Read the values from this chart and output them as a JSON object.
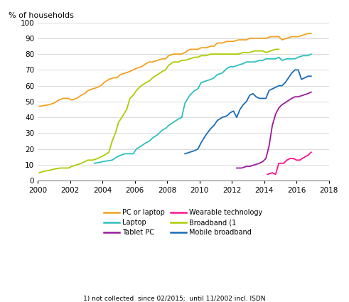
{
  "title": "",
  "ylabel": "% of households",
  "xlim": [
    2000,
    2018
  ],
  "ylim": [
    0,
    100
  ],
  "xticks": [
    2000,
    2002,
    2004,
    2006,
    2008,
    2010,
    2012,
    2014,
    2016,
    2018
  ],
  "yticks": [
    0,
    10,
    20,
    30,
    40,
    50,
    60,
    70,
    80,
    90,
    100
  ],
  "footnote": "1) not collected  since 02/2015;  until 11/2002 incl. ISDN",
  "series": {
    "PC or laptop": {
      "color": "#F4A020",
      "data": [
        [
          2000.1,
          47
        ],
        [
          2000.4,
          47.5
        ],
        [
          2000.7,
          48
        ],
        [
          2001.0,
          49
        ],
        [
          2001.3,
          51
        ],
        [
          2001.6,
          52
        ],
        [
          2001.9,
          52
        ],
        [
          2002.1,
          51
        ],
        [
          2002.4,
          52
        ],
        [
          2002.7,
          54
        ],
        [
          2002.9,
          55
        ],
        [
          2003.1,
          57
        ],
        [
          2003.4,
          58
        ],
        [
          2003.7,
          59
        ],
        [
          2003.9,
          60
        ],
        [
          2004.1,
          62
        ],
        [
          2004.4,
          64
        ],
        [
          2004.7,
          65
        ],
        [
          2004.9,
          65
        ],
        [
          2005.1,
          67
        ],
        [
          2005.4,
          68
        ],
        [
          2005.7,
          69
        ],
        [
          2005.9,
          70
        ],
        [
          2006.1,
          71
        ],
        [
          2006.4,
          72
        ],
        [
          2006.7,
          74
        ],
        [
          2006.9,
          75
        ],
        [
          2007.1,
          75
        ],
        [
          2007.4,
          76
        ],
        [
          2007.7,
          77
        ],
        [
          2007.9,
          77
        ],
        [
          2008.1,
          79
        ],
        [
          2008.4,
          80
        ],
        [
          2008.7,
          80
        ],
        [
          2008.9,
          80
        ],
        [
          2009.1,
          81
        ],
        [
          2009.4,
          83
        ],
        [
          2009.7,
          83
        ],
        [
          2009.9,
          83
        ],
        [
          2010.1,
          84
        ],
        [
          2010.4,
          84
        ],
        [
          2010.7,
          85
        ],
        [
          2010.9,
          85
        ],
        [
          2011.1,
          87
        ],
        [
          2011.4,
          87
        ],
        [
          2011.7,
          88
        ],
        [
          2011.9,
          88
        ],
        [
          2012.1,
          88
        ],
        [
          2012.4,
          89
        ],
        [
          2012.7,
          89
        ],
        [
          2012.9,
          89
        ],
        [
          2013.1,
          90
        ],
        [
          2013.4,
          90
        ],
        [
          2013.7,
          90
        ],
        [
          2013.9,
          90
        ],
        [
          2014.1,
          90
        ],
        [
          2014.4,
          91
        ],
        [
          2014.7,
          91
        ],
        [
          2014.9,
          91
        ],
        [
          2015.1,
          89
        ],
        [
          2015.4,
          90
        ],
        [
          2015.7,
          91
        ],
        [
          2015.9,
          91
        ],
        [
          2016.1,
          91
        ],
        [
          2016.4,
          92
        ],
        [
          2016.7,
          93
        ],
        [
          2016.9,
          93
        ]
      ]
    },
    "Laptop": {
      "color": "#2BBFBF",
      "data": [
        [
          2003.5,
          11
        ],
        [
          2003.8,
          11.5
        ],
        [
          2004.0,
          12
        ],
        [
          2004.3,
          12.5
        ],
        [
          2004.6,
          13
        ],
        [
          2004.9,
          15
        ],
        [
          2005.1,
          16
        ],
        [
          2005.4,
          17
        ],
        [
          2005.7,
          17
        ],
        [
          2005.9,
          17
        ],
        [
          2006.1,
          20
        ],
        [
          2006.4,
          22
        ],
        [
          2006.7,
          24
        ],
        [
          2006.9,
          25
        ],
        [
          2007.1,
          27
        ],
        [
          2007.4,
          29
        ],
        [
          2007.7,
          32
        ],
        [
          2007.9,
          33
        ],
        [
          2008.1,
          35
        ],
        [
          2008.4,
          37
        ],
        [
          2008.7,
          39
        ],
        [
          2008.9,
          40
        ],
        [
          2009.1,
          49
        ],
        [
          2009.4,
          54
        ],
        [
          2009.7,
          57
        ],
        [
          2009.9,
          58
        ],
        [
          2010.1,
          62
        ],
        [
          2010.4,
          63
        ],
        [
          2010.7,
          64
        ],
        [
          2010.9,
          65
        ],
        [
          2011.1,
          67
        ],
        [
          2011.4,
          68
        ],
        [
          2011.7,
          71
        ],
        [
          2011.9,
          72
        ],
        [
          2012.1,
          72
        ],
        [
          2012.4,
          73
        ],
        [
          2012.7,
          74
        ],
        [
          2012.9,
          75
        ],
        [
          2013.1,
          75
        ],
        [
          2013.4,
          75
        ],
        [
          2013.7,
          76
        ],
        [
          2013.9,
          76
        ],
        [
          2014.1,
          77
        ],
        [
          2014.4,
          77
        ],
        [
          2014.7,
          77
        ],
        [
          2014.9,
          78
        ],
        [
          2015.1,
          76
        ],
        [
          2015.4,
          77
        ],
        [
          2015.7,
          77
        ],
        [
          2015.9,
          77
        ],
        [
          2016.1,
          78
        ],
        [
          2016.4,
          79
        ],
        [
          2016.7,
          79
        ],
        [
          2016.9,
          80
        ]
      ]
    },
    "Tablet PC": {
      "color": "#9B1A9B",
      "data": [
        [
          2012.3,
          8
        ],
        [
          2012.6,
          8
        ],
        [
          2012.9,
          9
        ],
        [
          2013.1,
          9
        ],
        [
          2013.4,
          10
        ],
        [
          2013.7,
          11
        ],
        [
          2013.9,
          12
        ],
        [
          2014.1,
          14
        ],
        [
          2014.3,
          22
        ],
        [
          2014.5,
          35
        ],
        [
          2014.7,
          42
        ],
        [
          2014.9,
          46
        ],
        [
          2015.1,
          48
        ],
        [
          2015.4,
          50
        ],
        [
          2015.7,
          52
        ],
        [
          2015.9,
          53
        ],
        [
          2016.1,
          53
        ],
        [
          2016.4,
          54
        ],
        [
          2016.7,
          55
        ],
        [
          2016.9,
          56
        ]
      ]
    },
    "Wearable technology": {
      "color": "#FF1090",
      "data": [
        [
          2014.2,
          4
        ],
        [
          2014.5,
          5
        ],
        [
          2014.7,
          4
        ],
        [
          2014.9,
          11
        ],
        [
          2015.2,
          11
        ],
        [
          2015.4,
          13
        ],
        [
          2015.6,
          14
        ],
        [
          2015.8,
          14
        ],
        [
          2016.0,
          13
        ],
        [
          2016.2,
          13
        ],
        [
          2016.5,
          15
        ],
        [
          2016.7,
          16
        ],
        [
          2016.9,
          18
        ]
      ]
    },
    "Broadband (1": {
      "color": "#AACC00",
      "data": [
        [
          2000.1,
          5
        ],
        [
          2000.4,
          6
        ],
        [
          2000.7,
          6.5
        ],
        [
          2000.9,
          7
        ],
        [
          2001.1,
          7.5
        ],
        [
          2001.4,
          8
        ],
        [
          2001.7,
          8
        ],
        [
          2001.9,
          8
        ],
        [
          2002.1,
          9
        ],
        [
          2002.4,
          10
        ],
        [
          2002.7,
          11
        ],
        [
          2002.9,
          12
        ],
        [
          2003.1,
          13
        ],
        [
          2003.4,
          13
        ],
        [
          2003.7,
          14
        ],
        [
          2003.9,
          15
        ],
        [
          2004.1,
          16
        ],
        [
          2004.4,
          18
        ],
        [
          2004.6,
          25
        ],
        [
          2004.8,
          30
        ],
        [
          2005.0,
          37
        ],
        [
          2005.2,
          40
        ],
        [
          2005.5,
          45
        ],
        [
          2005.7,
          52
        ],
        [
          2005.9,
          54
        ],
        [
          2006.1,
          57
        ],
        [
          2006.4,
          60
        ],
        [
          2006.7,
          62
        ],
        [
          2006.9,
          63
        ],
        [
          2007.1,
          65
        ],
        [
          2007.4,
          67
        ],
        [
          2007.7,
          69
        ],
        [
          2007.9,
          70
        ],
        [
          2008.1,
          73
        ],
        [
          2008.4,
          75
        ],
        [
          2008.7,
          75
        ],
        [
          2008.9,
          76
        ],
        [
          2009.1,
          76
        ],
        [
          2009.4,
          77
        ],
        [
          2009.7,
          78
        ],
        [
          2009.9,
          78
        ],
        [
          2010.1,
          79
        ],
        [
          2010.4,
          79
        ],
        [
          2010.7,
          80
        ],
        [
          2010.9,
          80
        ],
        [
          2011.1,
          80
        ],
        [
          2011.4,
          80
        ],
        [
          2011.7,
          80
        ],
        [
          2011.9,
          80
        ],
        [
          2012.1,
          80
        ],
        [
          2012.4,
          80
        ],
        [
          2012.7,
          81
        ],
        [
          2012.9,
          81
        ],
        [
          2013.1,
          81
        ],
        [
          2013.4,
          82
        ],
        [
          2013.7,
          82
        ],
        [
          2013.9,
          82
        ],
        [
          2014.1,
          81
        ],
        [
          2014.4,
          82
        ],
        [
          2014.7,
          83
        ],
        [
          2014.9,
          83
        ]
      ]
    },
    "Mobile broadband": {
      "color": "#1A6CB5",
      "data": [
        [
          2009.1,
          17
        ],
        [
          2009.4,
          18
        ],
        [
          2009.7,
          19
        ],
        [
          2009.9,
          20
        ],
        [
          2010.1,
          24
        ],
        [
          2010.4,
          29
        ],
        [
          2010.7,
          33
        ],
        [
          2010.9,
          35
        ],
        [
          2011.1,
          38
        ],
        [
          2011.4,
          40
        ],
        [
          2011.7,
          41
        ],
        [
          2011.9,
          43
        ],
        [
          2012.1,
          44
        ],
        [
          2012.3,
          40
        ],
        [
          2012.5,
          45
        ],
        [
          2012.7,
          48
        ],
        [
          2012.9,
          50
        ],
        [
          2013.1,
          54
        ],
        [
          2013.3,
          55
        ],
        [
          2013.5,
          53
        ],
        [
          2013.7,
          52
        ],
        [
          2013.9,
          52
        ],
        [
          2014.1,
          52
        ],
        [
          2014.3,
          57
        ],
        [
          2014.5,
          58
        ],
        [
          2014.7,
          59
        ],
        [
          2014.9,
          60
        ],
        [
          2015.1,
          60
        ],
        [
          2015.3,
          62
        ],
        [
          2015.5,
          65
        ],
        [
          2015.7,
          68
        ],
        [
          2015.9,
          70
        ],
        [
          2016.1,
          70
        ],
        [
          2016.3,
          64
        ],
        [
          2016.5,
          65
        ],
        [
          2016.7,
          66
        ],
        [
          2016.9,
          66
        ]
      ]
    }
  },
  "legend_order": [
    "PC or laptop",
    "Laptop",
    "Tablet PC",
    "Wearable technology",
    "Broadband (1",
    "Mobile broadband"
  ]
}
